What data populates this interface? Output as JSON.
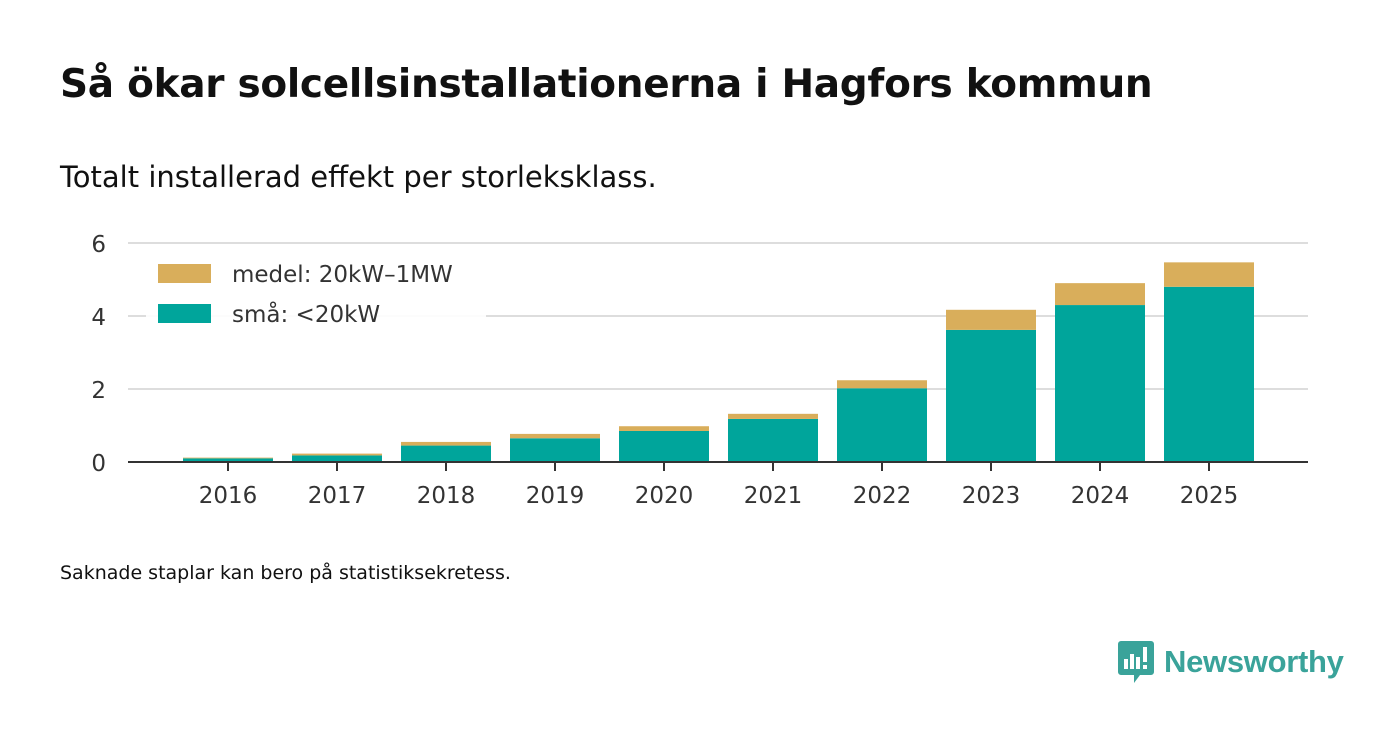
{
  "title": "Så ökar solcellsinstallationerna i Hagfors kommun",
  "subtitle": "Totalt installerad effekt per storleksklass.",
  "footnote": "Saknade staplar kan bero på statistiksekretess.",
  "brand": {
    "name": "Newsworthy"
  },
  "colors": {
    "small": "#00a59b",
    "medium": "#d9ae5b",
    "grid": "#dddddd",
    "axis": "#333333",
    "text": "#333333",
    "brand": "#3aa39a"
  },
  "chart_data": {
    "type": "bar",
    "stacked": true,
    "categories": [
      "2016",
      "2017",
      "2018",
      "2019",
      "2020",
      "2021",
      "2022",
      "2023",
      "2024",
      "2025"
    ],
    "series": [
      {
        "name": "små: <20kW",
        "key": "small",
        "values": [
          0.1,
          0.18,
          0.45,
          0.65,
          0.85,
          1.18,
          2.02,
          3.62,
          4.3,
          4.8
        ]
      },
      {
        "name": "medel: 20kW–1MW",
        "key": "medium",
        "values": [
          0.02,
          0.05,
          0.1,
          0.12,
          0.13,
          0.14,
          0.22,
          0.55,
          0.6,
          0.67
        ]
      }
    ],
    "legend": [
      {
        "label": "medel: 20kW–1MW",
        "key": "medium"
      },
      {
        "label": "små: <20kW",
        "key": "small"
      }
    ],
    "yticks": [
      0,
      2,
      4,
      6
    ],
    "ylim": [
      0,
      6
    ],
    "xlabel": "",
    "ylabel": "",
    "grid": true,
    "legend_position": "top-left"
  }
}
